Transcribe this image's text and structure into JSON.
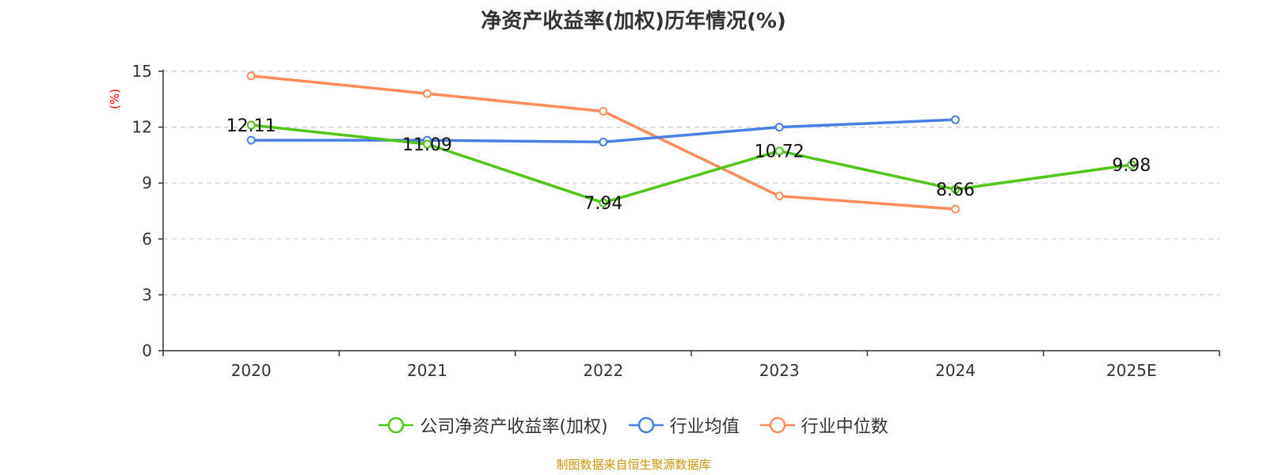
{
  "chart_data": {
    "type": "line",
    "title": "净资产收益率(加权)历年情况(%)",
    "ylabel": "(%)",
    "xlabel": "",
    "categories": [
      "2020",
      "2021",
      "2022",
      "2023",
      "2024",
      "2025E"
    ],
    "ylim": [
      0,
      15
    ],
    "yticks": [
      0,
      3,
      6,
      9,
      12,
      15
    ],
    "grid": true,
    "legend_position": "bottom",
    "series": [
      {
        "name": "公司净资产收益率(加权)",
        "color": "#52c41a",
        "values": [
          12.11,
          11.09,
          7.94,
          10.72,
          8.66,
          9.98
        ],
        "labels": [
          "12.11",
          "11.09",
          "7.94",
          "10.72",
          "8.66",
          "9.98"
        ]
      },
      {
        "name": "行业均值",
        "color": "#4a7fe0",
        "values": [
          11.3,
          11.3,
          11.2,
          12.0,
          12.4,
          null
        ]
      },
      {
        "name": "行业中位数",
        "color": "#ff8c5a",
        "values": [
          14.75,
          13.8,
          12.85,
          8.3,
          7.6,
          null
        ]
      }
    ]
  },
  "colors": {
    "ylabel": "#ff0000",
    "source": "#c8960c",
    "axis": "#333333",
    "grid": "#cccccc"
  },
  "source": "制图数据来自恒生聚源数据库"
}
